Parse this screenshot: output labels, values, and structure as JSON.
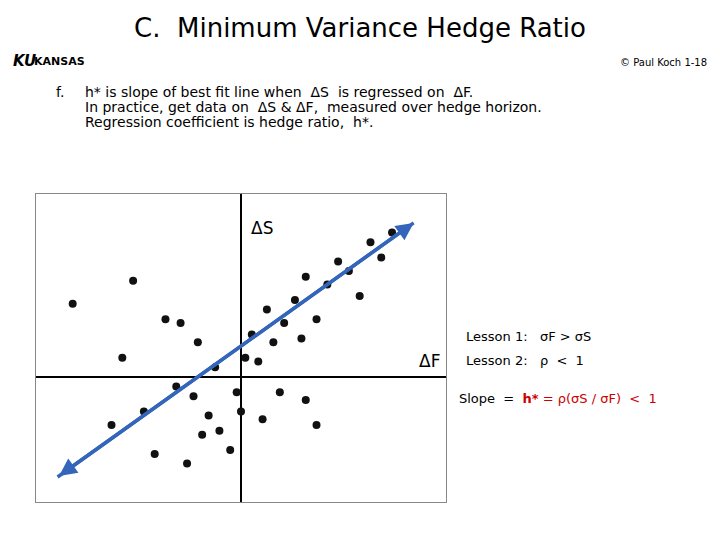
{
  "chart_data": {
    "type": "scatter",
    "title": "C.  Minimum Variance Hedge Ratio",
    "x_label": "ΔF",
    "y_label": "ΔS",
    "xlim": [
      -0.95,
      0.95
    ],
    "ylim": [
      -0.65,
      0.95
    ],
    "grid": false,
    "tick_labels": false,
    "series": [
      {
        "type": "scatter",
        "color": "#111111",
        "marker": "circle",
        "x": [
          -0.78,
          -0.55,
          -0.5,
          -0.35,
          -0.3,
          -0.28,
          -0.22,
          -0.2,
          -0.15,
          -0.12,
          -0.1,
          -0.05,
          -0.02,
          0.0,
          0.02,
          0.05,
          0.08,
          0.1,
          0.12,
          0.15,
          0.18,
          0.2,
          0.25,
          0.28,
          0.3,
          0.35,
          0.4,
          0.45,
          0.5,
          0.55,
          0.6,
          0.65,
          0.7,
          -0.6,
          -0.45,
          -0.4,
          -0.25,
          -0.18,
          0.3,
          0.35
        ],
        "values": [
          0.38,
          0.1,
          0.5,
          0.3,
          -0.05,
          0.28,
          -0.1,
          0.18,
          -0.2,
          0.05,
          -0.28,
          -0.38,
          -0.08,
          -0.18,
          0.1,
          0.22,
          0.08,
          -0.22,
          0.35,
          0.18,
          -0.08,
          0.28,
          0.4,
          0.2,
          0.52,
          0.3,
          0.48,
          0.6,
          0.55,
          0.42,
          0.7,
          0.62,
          0.75,
          -0.25,
          -0.18,
          -0.4,
          -0.45,
          -0.3,
          -0.12,
          -0.25
        ]
      },
      {
        "type": "line",
        "color": "#3366bb",
        "marker": "arrow",
        "x": [
          -0.85,
          0.8
        ],
        "values": [
          -0.52,
          0.8
        ]
      }
    ],
    "annotations": [
      {
        "text": "KU"
      },
      {
        "text": "KANSAS"
      },
      {
        "text": "© Paul Koch 1-18"
      },
      {
        "text": "f."
      },
      {
        "text": "h* is slope of best fit line when  ΔS  is regressed on  ΔF."
      },
      {
        "text": "In practice, get data on  ΔS & ΔF,  measured over hedge horizon."
      },
      {
        "text": "Regression coefficient is hedge ratio,  h*."
      },
      {
        "text": "Lesson 1:   σF > σS"
      },
      {
        "text": "Lesson 2:   ρ  <  1"
      },
      {
        "text": "Slope  =  "
      },
      {
        "text": "h*",
        "color": "#cc0000"
      },
      {
        "text": " = ρ(σS / σF)  <  1",
        "color": "#cc0000"
      }
    ]
  }
}
